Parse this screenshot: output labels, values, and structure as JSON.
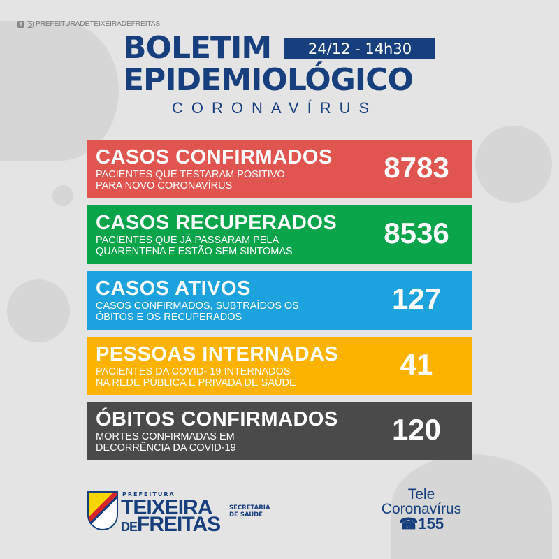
{
  "header": {
    "social_handle": "PREFEITURADETEIXEIRADEFREITAS",
    "title_line1": "BOLETIM",
    "title_line2": "EPIDEMIOLÓGICO",
    "date": "24/12 - 14h30",
    "subtitle": "CORONAVÍRUS"
  },
  "cards": [
    {
      "title": "CASOS CONFIRMADOS",
      "desc1": "PACIENTES QUE TESTARAM POSITIVO",
      "desc2": "PARA NOVO CORONAVÍRUS",
      "value": "8783",
      "color": "#e0554f"
    },
    {
      "title": "CASOS RECUPERADOS",
      "desc1": "PACIENTES QUE JÁ PASSARAM PELA",
      "desc2": "QUARENTENA E ESTÃO SEM SINTOMAS",
      "value": "8536",
      "color": "#0aa44a"
    },
    {
      "title": "CASOS ATIVOS",
      "desc1": "CASOS CONFIRMADOS, SUBTRAÍDOS OS",
      "desc2": "ÓBITOS E OS RECUPERADOS",
      "value": "127",
      "color": "#1ca2dc"
    },
    {
      "title": "PESSOAS INTERNADAS",
      "desc1": "PACIENTES DA COVID- 19 INTERNADOS",
      "desc2": "NA REDE PÚBLICA E PRIVADA DE SAÚDE",
      "value": "41",
      "color": "#fbb300"
    },
    {
      "title": "ÓBITOS CONFIRMADOS",
      "desc1": "MORTES CONFIRMADAS EM",
      "desc2": "DECORRÊNCIA DA COVID-19",
      "value": "120",
      "color": "#4a4a4a"
    }
  ],
  "footer": {
    "pref": "PREFEITURA",
    "city1": "TEIXEIRA",
    "city2_de": "DE",
    "city2": "FREITAS",
    "sec1": "SECRETARIA",
    "sec2": "DE SAÚDE",
    "tele1": "Tele",
    "tele2": "Coronavírus",
    "phone": "155"
  },
  "colors": {
    "navy": "#173f7e",
    "background": "#e4e4e4"
  }
}
